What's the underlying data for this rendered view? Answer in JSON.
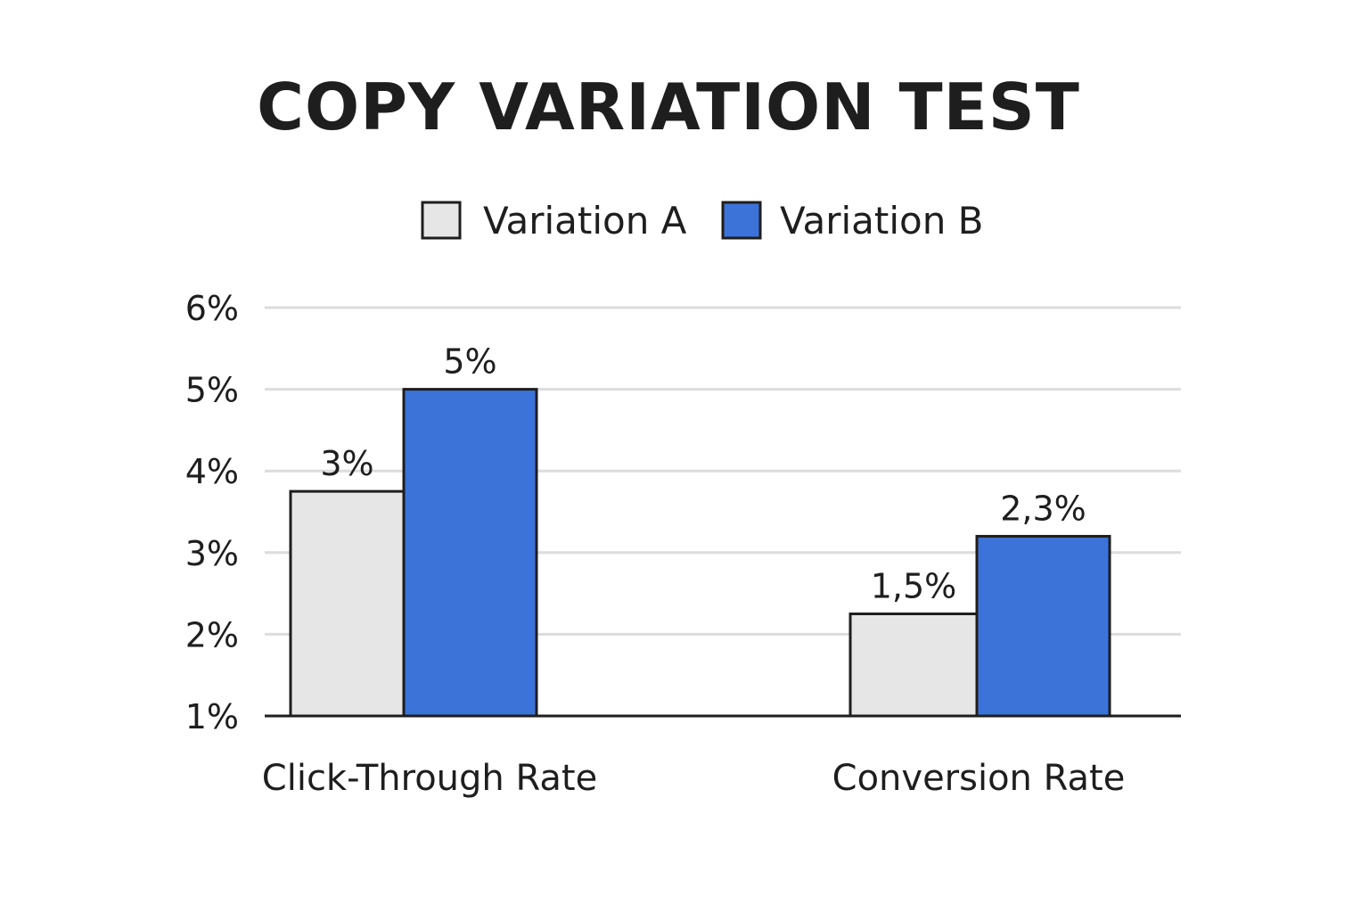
{
  "chart_data": {
    "type": "bar",
    "title": "COPY VARIATION TEST",
    "categories": [
      "Click-Through Rate",
      "Conversion Rate"
    ],
    "series": [
      {
        "name": "Variation A",
        "color": "#e6e6e6",
        "values": [
          3,
          1.5
        ],
        "labels": [
          "3%",
          "1,5%"
        ]
      },
      {
        "name": "Variation B",
        "color": "#3b73d9",
        "values": [
          5,
          2.3
        ],
        "labels": [
          "5%",
          "2,3%"
        ]
      }
    ],
    "yticks": [
      {
        "value": 1,
        "label": "1%"
      },
      {
        "value": 2,
        "label": "2%"
      },
      {
        "value": 3,
        "label": "3%"
      },
      {
        "value": 4,
        "label": "4%"
      },
      {
        "value": 5,
        "label": "5%"
      },
      {
        "value": 6,
        "label": "6%"
      }
    ],
    "ylim": [
      1,
      6
    ],
    "grid": true,
    "legend_position": "top-center",
    "xlabel": "",
    "ylabel": ""
  }
}
